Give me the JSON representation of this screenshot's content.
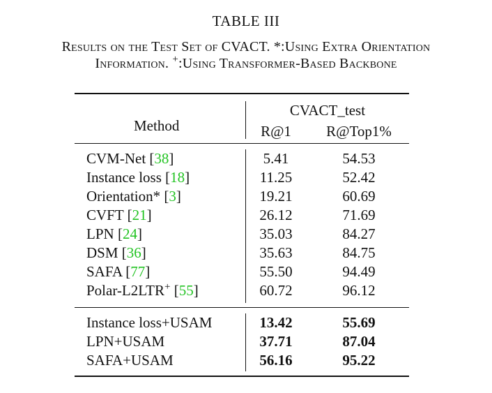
{
  "table": {
    "label": "TABLE III",
    "caption_line1": "Results on the Test Set of CVACT. *:Using Extra Orientation",
    "caption_line2_a": "Information. ",
    "caption_line2_sup": "+",
    "caption_line2_b": ":Using Transformer-Based Backbone",
    "header": {
      "method": "Method",
      "group": "CVACT_test",
      "col1": "R@1",
      "col2": "R@Top1%"
    },
    "rows": [
      {
        "name": "CVM-Net",
        "ref": "38",
        "r1": "5.41",
        "rtop": "54.53"
      },
      {
        "name": "Instance loss",
        "ref": "18",
        "r1": "11.25",
        "rtop": "52.42"
      },
      {
        "name": "Orientation*",
        "ref": "3",
        "r1": "19.21",
        "rtop": "60.69"
      },
      {
        "name": "CVFT",
        "ref": "21",
        "r1": "26.12",
        "rtop": "71.69"
      },
      {
        "name": "LPN",
        "ref": "24",
        "r1": "35.03",
        "rtop": "84.27"
      },
      {
        "name": "DSM",
        "ref": "36",
        "r1": "35.63",
        "rtop": "84.75"
      },
      {
        "name": "SAFA",
        "ref": "77",
        "r1": "55.50",
        "rtop": "94.49"
      },
      {
        "name": "Polar-L2LTR",
        "sup": "+",
        "ref": "55",
        "r1": "60.72",
        "rtop": "96.12"
      }
    ],
    "ours": [
      {
        "name": "Instance loss+USAM",
        "r1": "13.42",
        "rtop": "55.69"
      },
      {
        "name": "LPN+USAM",
        "r1": "37.71",
        "rtop": "87.04"
      },
      {
        "name": "SAFA+USAM",
        "r1": "56.16",
        "rtop": "95.22"
      }
    ]
  }
}
